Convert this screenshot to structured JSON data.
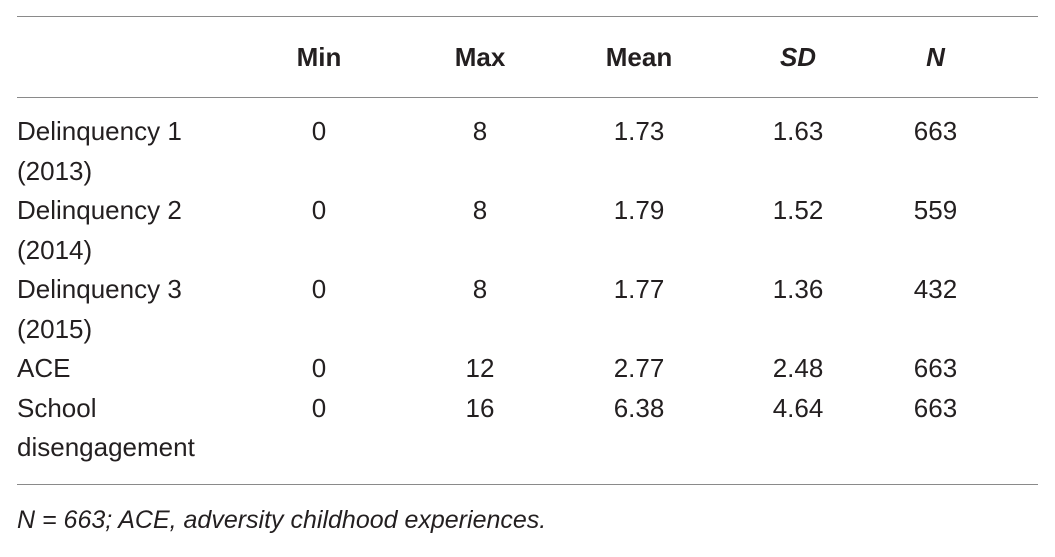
{
  "table": {
    "headers": {
      "label": "",
      "min": "Min",
      "max": "Max",
      "mean": "Mean",
      "sd": "SD",
      "n": "N"
    },
    "rows": [
      {
        "label": "Delinquency 1 (2013)",
        "min": "0",
        "max": "8",
        "mean": "1.73",
        "sd": "1.63",
        "n": "663"
      },
      {
        "label": "Delinquency 2 (2014)",
        "min": "0",
        "max": "8",
        "mean": "1.79",
        "sd": "1.52",
        "n": "559"
      },
      {
        "label": "Delinquency 3 (2015)",
        "min": "0",
        "max": "8",
        "mean": "1.77",
        "sd": "1.36",
        "n": "432"
      },
      {
        "label": "ACE",
        "min": "0",
        "max": "12",
        "mean": "2.77",
        "sd": "2.48",
        "n": "663"
      },
      {
        "label": "School disengagement",
        "min": "0",
        "max": "16",
        "mean": "6.38",
        "sd": "4.64",
        "n": "663"
      }
    ]
  },
  "footnote": "N = 663; ACE, adversity childhood experiences."
}
